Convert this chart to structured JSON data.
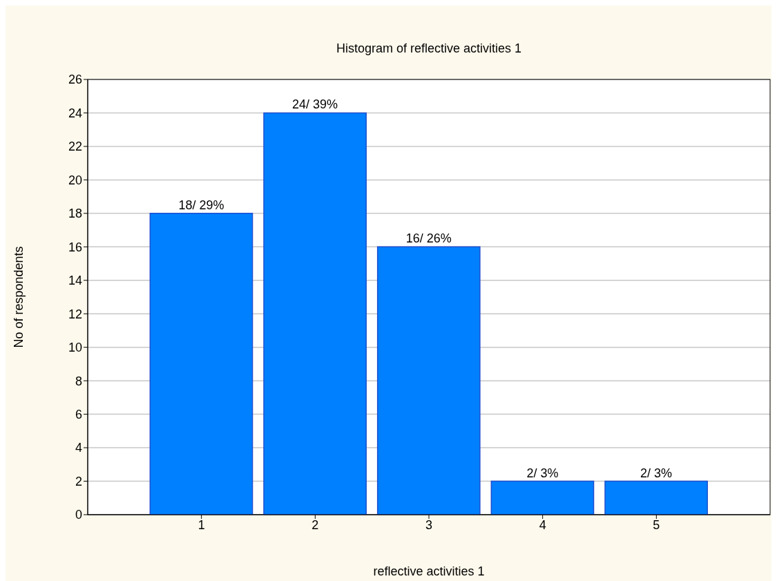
{
  "chart_data": {
    "type": "histogram",
    "title": "Histogram of reflective activities 1",
    "xlabel": "reflective activities 1",
    "ylabel": "No of respondents",
    "bins": [
      0.5,
      1.5,
      2.5,
      3.5,
      4.5,
      5.5
    ],
    "values": [
      18,
      24,
      16,
      2,
      2
    ],
    "value_labels": [
      "18/ 29%",
      "24/ 39%",
      "16/ 26%",
      "2/ 3%",
      "2/ 3%"
    ],
    "color": "#0080ff",
    "xlim": [
      0,
      6
    ],
    "xticks": [
      1,
      2,
      3,
      4,
      5
    ],
    "ylim": [
      0,
      26
    ],
    "yticks": [
      0,
      2,
      4,
      6,
      8,
      10,
      12,
      14,
      16,
      18,
      20,
      22,
      24,
      26
    ],
    "grid": "y"
  }
}
